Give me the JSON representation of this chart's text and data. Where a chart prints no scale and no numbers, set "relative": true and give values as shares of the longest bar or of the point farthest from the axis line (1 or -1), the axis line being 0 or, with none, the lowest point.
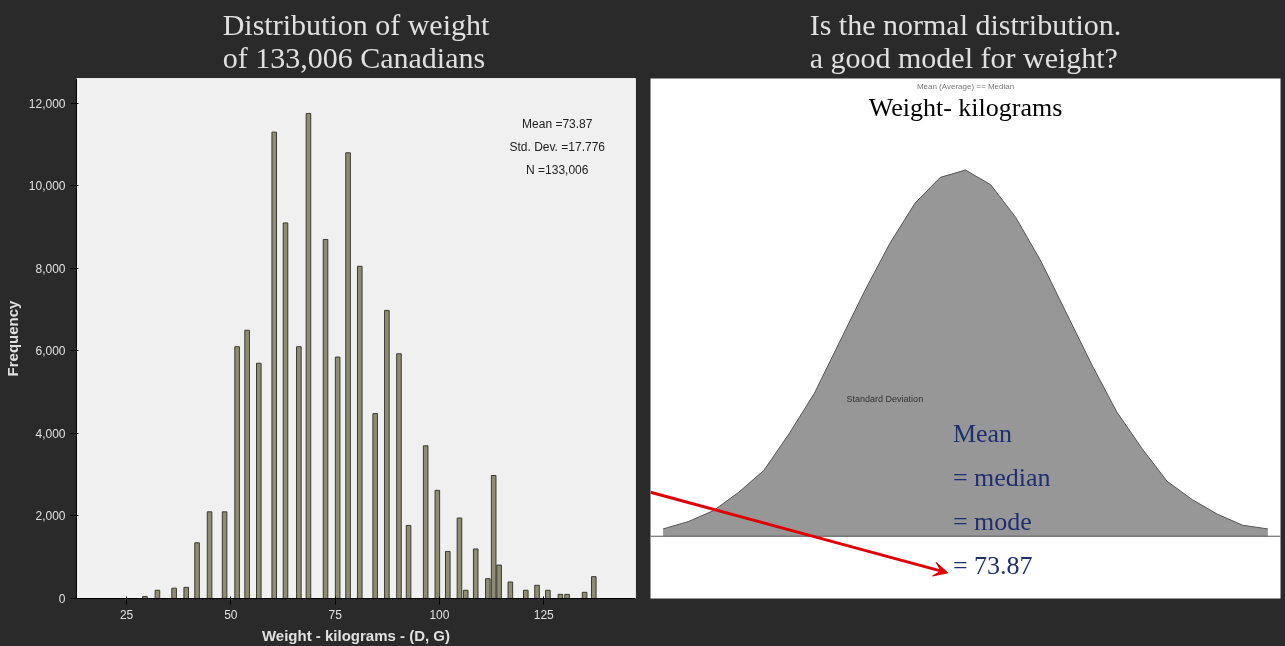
{
  "chart_data": [
    {
      "type": "bar",
      "title": "Distribution of weight of 133,006 Canadians",
      "xlabel": "Weight - kilograms - (D, G)",
      "ylabel": "Frequency",
      "x": [
        29.4,
        32.4,
        36.4,
        39.3,
        41.9,
        44.9,
        48.5,
        51.5,
        53.9,
        56.7,
        60.4,
        63.1,
        66.3,
        68.6,
        72.7,
        75.6,
        78.1,
        80.9,
        84.6,
        87.4,
        90.3,
        92.6,
        96.7,
        99.5,
        102,
        104.8,
        106.3,
        108.7,
        111.6,
        113,
        114.3,
        117,
        120.7,
        123.4,
        126,
        129,
        130.6,
        134.8,
        137
      ],
      "series": [
        {
          "color": "#8f8c74",
          "values": [
            50,
            200,
            250,
            270,
            1350,
            2100,
            2100,
            6100,
            6500,
            5700,
            11300,
            9100,
            6100,
            11750,
            8700,
            5850,
            10800,
            8050,
            4480,
            6980,
            5930,
            1770,
            3700,
            2620,
            1140,
            1950,
            200,
            1200,
            480,
            2980,
            810,
            400,
            200,
            320,
            200,
            100,
            100,
            150,
            530
          ]
        }
      ],
      "xlim": [
        13,
        147
      ],
      "ylim": [
        0,
        12600
      ],
      "xticks": [
        25,
        50,
        75,
        100,
        125
      ],
      "yticks": [
        0,
        {
          "value": 2000,
          "label": "2,000"
        },
        {
          "value": 4000,
          "label": "4,000"
        },
        {
          "value": 6000,
          "label": "6,000"
        },
        {
          "value": 8000,
          "label": "8,000"
        },
        {
          "value": 10000,
          "label": "10,000"
        },
        {
          "value": 12000,
          "label": "12,000"
        }
      ],
      "grid": false,
      "annotations": [
        "Mean =73.87",
        "Std. Dev. =17.776",
        "N =133,006"
      ]
    },
    {
      "type": "area",
      "relative": true,
      "title": "Is the normal distribution. a good model for weight?",
      "subtitle": "Weight- kilograms",
      "categories": [
        null,
        null,
        null,
        null,
        null,
        null,
        null,
        null,
        null,
        null,
        null,
        null,
        null,
        null,
        null,
        null,
        null,
        null,
        null,
        null,
        null,
        null,
        null,
        null,
        null
      ],
      "series": [
        {
          "color": "#8c8c8c",
          "values": [
            0.02,
            0.04,
            0.07,
            0.12,
            0.18,
            0.28,
            0.39,
            0.53,
            0.67,
            0.8,
            0.91,
            0.98,
            1,
            0.96,
            0.87,
            0.75,
            0.61,
            0.47,
            0.34,
            0.24,
            0.15,
            0.1,
            0.06,
            0.03,
            0.02
          ]
        }
      ],
      "annotations": [
        "Mean (Average) == Median",
        "Standard Deviation",
        "Mean",
        "= median",
        "= mode",
        "= 73.87"
      ]
    }
  ]
}
